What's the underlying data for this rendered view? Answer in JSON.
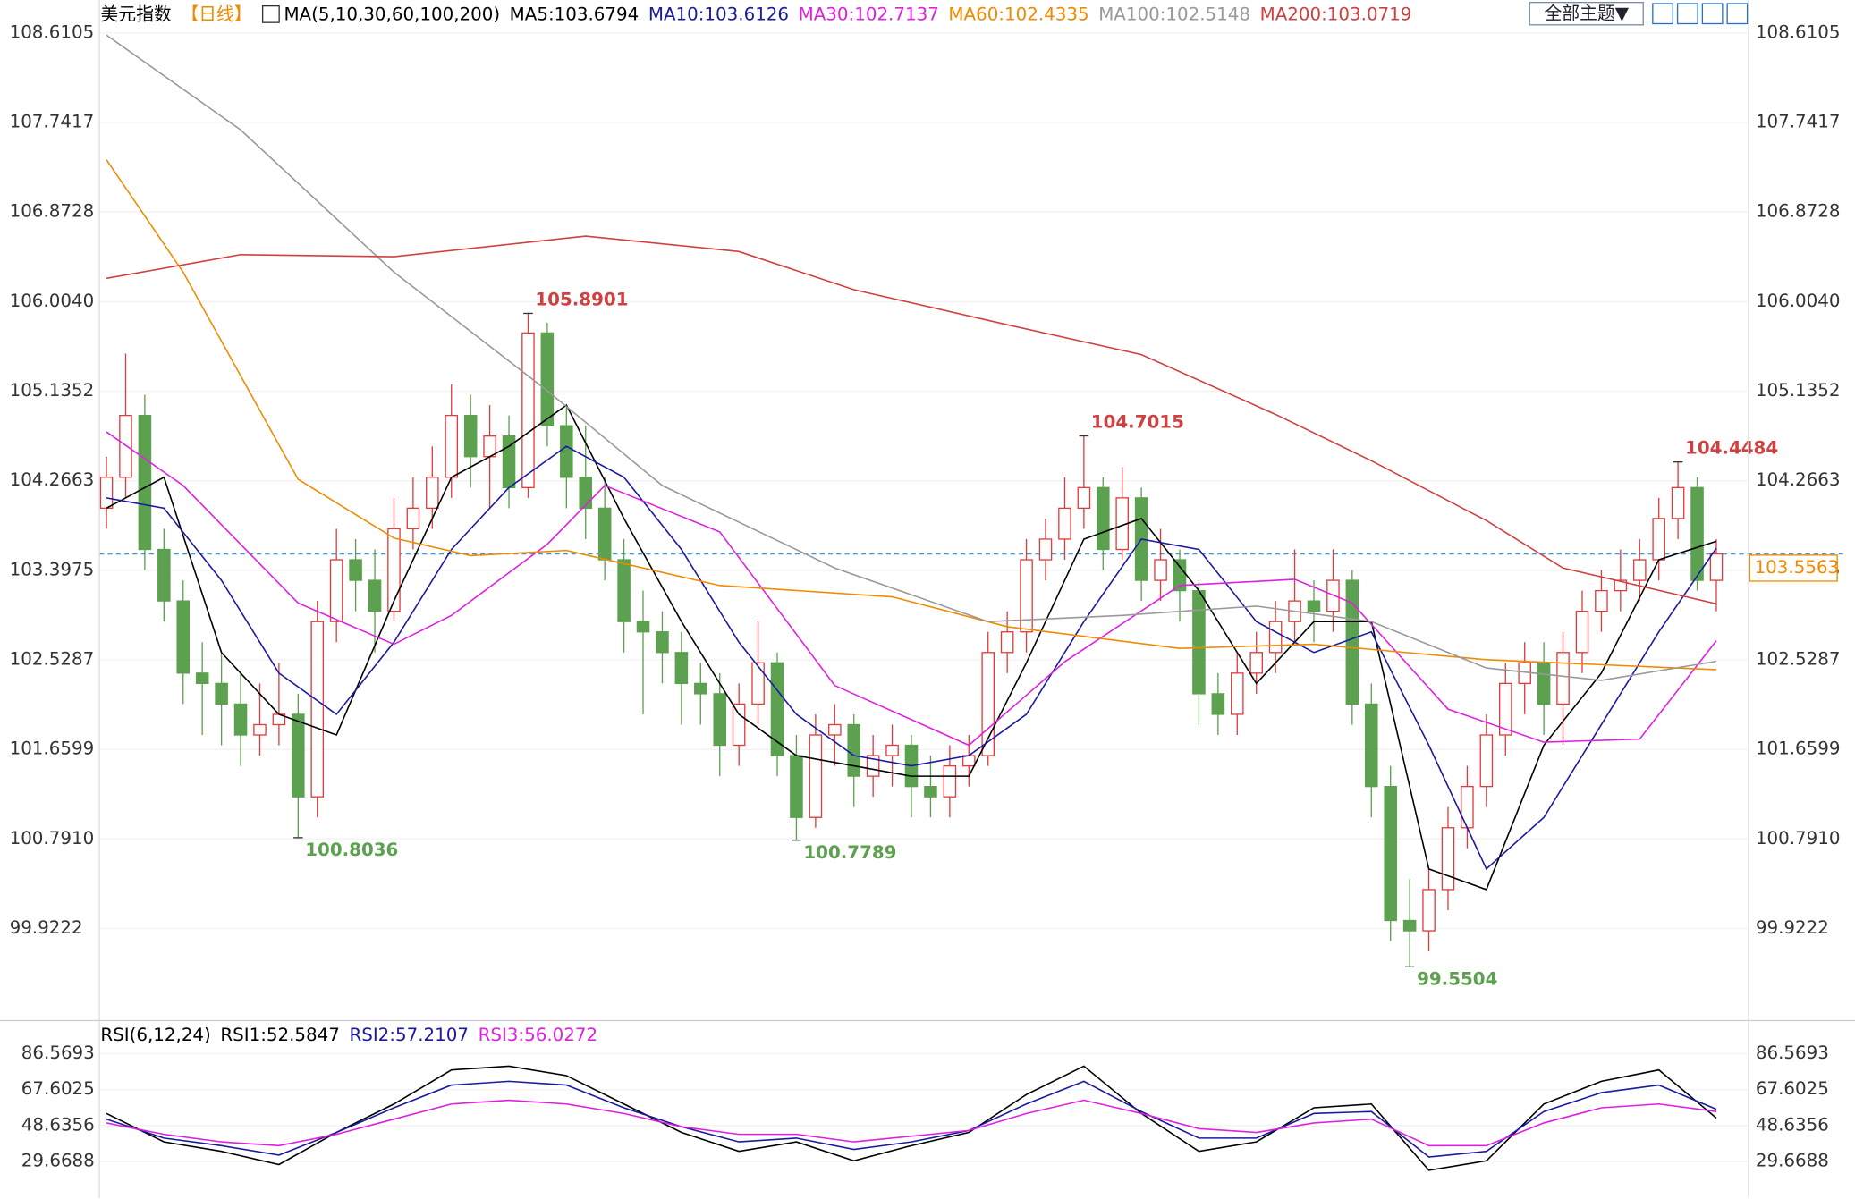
{
  "chart_data": {
    "type": "candlestick",
    "title": "美元指数",
    "period": "【日线】",
    "ma_title": "MA(5,10,30,60,100,200)",
    "button": "全部主题▼",
    "up_color": "#e03c3c",
    "down_color": "#5ca14f",
    "grid": true,
    "ylim": [
      99.04,
      108.93
    ],
    "yticks": [
      108.6105,
      107.7417,
      106.8728,
      {
        "value": 106.004,
        "label": "106.0040"
      },
      105.1352,
      104.2663,
      103.3975,
      102.5287,
      101.6599,
      {
        "value": 100.791,
        "label": "100.7910"
      },
      99.9222
    ],
    "last_price": 103.5563,
    "extremes": {
      "highs": [
        105.8901,
        104.7015,
        104.4484
      ],
      "lows": [
        100.8036,
        100.7789,
        99.5504
      ]
    },
    "candles": {
      "open": [
        104.0,
        104.3,
        104.9,
        103.6,
        103.1,
        102.4,
        102.3,
        102.1,
        101.8,
        101.9,
        102.0,
        101.2,
        102.9,
        103.5,
        103.3,
        103.0,
        103.8,
        104.0,
        104.3,
        104.9,
        104.5,
        104.7,
        104.2,
        105.7,
        104.8,
        104.3,
        104.0,
        103.5,
        102.9,
        102.8,
        102.6,
        102.3,
        102.2,
        101.7,
        102.1,
        102.5,
        101.6,
        101.0,
        101.8,
        101.9,
        101.4,
        101.6,
        101.7,
        101.3,
        101.2,
        101.5,
        101.6,
        102.6,
        102.8,
        103.5,
        103.7,
        104.0,
        104.2,
        103.6,
        104.1,
        103.3,
        103.5,
        103.2,
        102.2,
        102.0,
        102.4,
        102.6,
        102.9,
        103.1,
        103.0,
        103.3,
        102.1,
        101.3,
        100.0,
        99.9,
        100.3,
        100.9,
        101.3,
        101.8,
        102.3,
        102.5,
        102.1,
        102.6,
        103.0,
        103.2,
        103.3,
        103.5,
        103.9,
        104.2,
        103.3
      ],
      "high": [
        104.5,
        105.5,
        105.1,
        103.8,
        103.3,
        102.7,
        102.6,
        102.4,
        102.3,
        102.5,
        102.2,
        103.1,
        103.8,
        103.7,
        103.6,
        104.1,
        104.3,
        104.6,
        105.2,
        105.1,
        105.0,
        104.9,
        105.8901,
        105.8,
        105.0,
        104.8,
        104.3,
        103.7,
        103.2,
        103.0,
        102.8,
        102.5,
        102.4,
        102.3,
        102.9,
        102.6,
        101.8,
        102.0,
        102.1,
        102.0,
        101.8,
        101.9,
        101.8,
        101.6,
        101.7,
        101.8,
        102.8,
        103.0,
        103.7,
        103.9,
        104.3,
        104.7015,
        104.3,
        104.4,
        104.2,
        103.8,
        103.6,
        103.3,
        102.4,
        102.6,
        102.8,
        103.1,
        103.6,
        103.3,
        103.6,
        103.4,
        102.3,
        101.5,
        100.4,
        100.5,
        101.1,
        101.5,
        102.0,
        102.5,
        102.7,
        102.7,
        102.8,
        103.2,
        103.4,
        103.6,
        103.7,
        104.1,
        104.4484,
        104.3,
        103.7
      ],
      "low": [
        103.8,
        104.1,
        103.4,
        102.9,
        102.1,
        101.8,
        101.7,
        101.5,
        101.6,
        101.7,
        100.8036,
        101.0,
        102.7,
        103.0,
        102.6,
        102.9,
        103.6,
        103.8,
        104.1,
        104.2,
        104.0,
        104.0,
        104.1,
        104.6,
        104.0,
        103.7,
        103.3,
        102.6,
        102.0,
        102.3,
        101.9,
        101.9,
        101.4,
        101.5,
        101.9,
        101.4,
        100.7789,
        100.9,
        101.5,
        101.1,
        101.2,
        101.3,
        101.0,
        101.0,
        101.0,
        101.3,
        101.5,
        102.4,
        102.6,
        103.3,
        103.5,
        103.8,
        103.4,
        103.5,
        103.1,
        103.1,
        102.9,
        101.9,
        101.8,
        101.8,
        102.2,
        102.4,
        102.7,
        102.7,
        102.8,
        101.9,
        101.0,
        99.8,
        99.5504,
        99.7,
        100.1,
        100.7,
        101.1,
        101.6,
        102.0,
        101.8,
        101.7,
        102.4,
        102.8,
        103.0,
        103.1,
        103.3,
        103.7,
        103.2,
        103.0
      ],
      "close": [
        104.3,
        104.9,
        103.6,
        103.1,
        102.4,
        102.3,
        102.1,
        101.8,
        101.9,
        102.0,
        101.2,
        102.9,
        103.5,
        103.3,
        103.0,
        103.8,
        104.0,
        104.3,
        104.9,
        104.5,
        104.7,
        104.2,
        105.7,
        104.8,
        104.3,
        104.0,
        103.5,
        102.9,
        102.8,
        102.6,
        102.3,
        102.2,
        101.7,
        102.1,
        102.5,
        101.6,
        101.0,
        101.8,
        101.9,
        101.4,
        101.6,
        101.7,
        101.3,
        101.2,
        101.5,
        101.6,
        102.6,
        102.8,
        103.5,
        103.7,
        104.0,
        104.2,
        103.6,
        104.1,
        103.3,
        103.5,
        103.2,
        102.2,
        102.0,
        102.4,
        102.6,
        102.9,
        103.1,
        103.0,
        103.3,
        102.1,
        101.3,
        100.0,
        99.9,
        100.3,
        100.9,
        101.3,
        101.8,
        102.3,
        102.5,
        102.1,
        102.6,
        103.0,
        103.2,
        103.3,
        103.5,
        103.9,
        104.2,
        103.3,
        103.5563
      ]
    },
    "ma": [
      {
        "name": "MA5:103.6794",
        "color": "#000000",
        "x": [
          0,
          3,
          6,
          9,
          12,
          15,
          18,
          21,
          24,
          27,
          30,
          33,
          36,
          39,
          42,
          45,
          48,
          51,
          54,
          57,
          60,
          63,
          66,
          69,
          72,
          75,
          78,
          81,
          84
        ],
        "values": [
          104.0,
          104.3,
          102.6,
          102.0,
          101.8,
          103.1,
          104.3,
          104.6,
          105.0,
          103.9,
          102.9,
          102.0,
          101.6,
          101.5,
          101.4,
          101.4,
          102.5,
          103.7,
          103.9,
          103.2,
          102.3,
          102.9,
          102.9,
          100.5,
          100.3,
          101.7,
          102.4,
          103.5,
          103.6794
        ]
      },
      {
        "name": "MA10:103.6126",
        "color": "#1a1aa0",
        "x": [
          0,
          3,
          6,
          9,
          12,
          15,
          18,
          21,
          24,
          27,
          30,
          33,
          36,
          39,
          42,
          45,
          48,
          51,
          54,
          57,
          60,
          63,
          66,
          69,
          72,
          75,
          78,
          81,
          84
        ],
        "values": [
          104.1,
          104.0,
          103.3,
          102.4,
          102.0,
          102.7,
          103.6,
          104.2,
          104.6,
          104.3,
          103.6,
          102.7,
          102.0,
          101.6,
          101.5,
          101.6,
          102.0,
          102.9,
          103.7,
          103.6,
          102.9,
          102.6,
          102.8,
          101.7,
          100.5,
          101.0,
          101.9,
          102.8,
          103.6126
        ]
      },
      {
        "name": "MA30:102.7137",
        "color": "#e020e0",
        "x": [
          0,
          4,
          10,
          15,
          18,
          23,
          26,
          32,
          38,
          45,
          50,
          56,
          62,
          65,
          70,
          75,
          80,
          84
        ],
        "values": [
          104.74,
          104.22,
          103.08,
          102.68,
          102.96,
          103.65,
          104.22,
          103.77,
          102.28,
          101.7,
          102.51,
          103.25,
          103.31,
          103.08,
          102.05,
          101.73,
          101.76,
          102.7137
        ]
      },
      {
        "name": "MA60:102.4335",
        "color": "#f08a00",
        "x": [
          0,
          4,
          10,
          15,
          19,
          24,
          32,
          41,
          47,
          56,
          63,
          72,
          84
        ],
        "values": [
          107.38,
          106.29,
          104.28,
          103.71,
          103.54,
          103.59,
          103.25,
          103.14,
          102.85,
          102.64,
          102.68,
          102.53,
          102.4335
        ]
      },
      {
        "name": "MA100:102.5148",
        "color": "#999999",
        "x": [
          0,
          7,
          15,
          23,
          29,
          38,
          46,
          53,
          60,
          66,
          72,
          78,
          84
        ],
        "values": [
          108.59,
          107.67,
          106.29,
          105.14,
          104.22,
          103.42,
          102.9,
          102.96,
          103.05,
          102.9,
          102.45,
          102.33,
          102.5148
        ]
      },
      {
        "name": "MA200:103.0719",
        "color": "#d04040",
        "x": [
          0,
          7,
          15,
          25,
          33,
          39,
          47,
          54,
          61,
          66,
          72,
          76,
          84
        ],
        "values": [
          106.23,
          106.46,
          106.44,
          106.64,
          106.49,
          106.12,
          105.78,
          105.49,
          104.91,
          104.46,
          103.88,
          103.42,
          103.0719
        ]
      }
    ],
    "rsi": {
      "title": "RSI(6,12,24)",
      "ylim": [
        10.95,
        102.8
      ],
      "yticks": [
        86.5693,
        67.6025,
        48.6356,
        29.6688
      ],
      "series": [
        {
          "name": "RSI1:52.5847",
          "color": "#000000",
          "x": [
            0,
            3,
            6,
            9,
            12,
            15,
            18,
            21,
            24,
            27,
            30,
            33,
            36,
            39,
            42,
            45,
            48,
            51,
            54,
            57,
            60,
            63,
            66,
            69,
            72,
            75,
            78,
            81,
            84
          ],
          "values": [
            55,
            40,
            35,
            28,
            45,
            60,
            78,
            80,
            75,
            60,
            45,
            35,
            40,
            30,
            38,
            45,
            65,
            80,
            55,
            35,
            40,
            58,
            60,
            25,
            30,
            60,
            72,
            78,
            52.5847
          ]
        },
        {
          "name": "RSI2:57.2107",
          "color": "#1a1aa0",
          "x": [
            0,
            3,
            6,
            9,
            12,
            15,
            18,
            21,
            24,
            27,
            30,
            33,
            36,
            39,
            42,
            45,
            48,
            51,
            54,
            57,
            60,
            63,
            66,
            69,
            72,
            75,
            78,
            81,
            84
          ],
          "values": [
            52,
            42,
            38,
            33,
            45,
            58,
            70,
            72,
            70,
            58,
            48,
            40,
            42,
            36,
            40,
            46,
            60,
            72,
            56,
            42,
            42,
            55,
            56,
            32,
            35,
            56,
            66,
            70,
            57.2107
          ]
        },
        {
          "name": "RSI3:56.0272",
          "color": "#e020e0",
          "x": [
            0,
            3,
            6,
            9,
            12,
            15,
            18,
            21,
            24,
            27,
            30,
            33,
            36,
            39,
            42,
            45,
            48,
            51,
            54,
            57,
            60,
            63,
            66,
            69,
            72,
            75,
            78,
            81,
            84
          ],
          "values": [
            50,
            44,
            40,
            38,
            44,
            52,
            60,
            62,
            60,
            55,
            48,
            44,
            44,
            40,
            43,
            46,
            55,
            62,
            55,
            47,
            45,
            50,
            52,
            38,
            38,
            50,
            58,
            60,
            56.0272
          ]
        }
      ]
    }
  }
}
